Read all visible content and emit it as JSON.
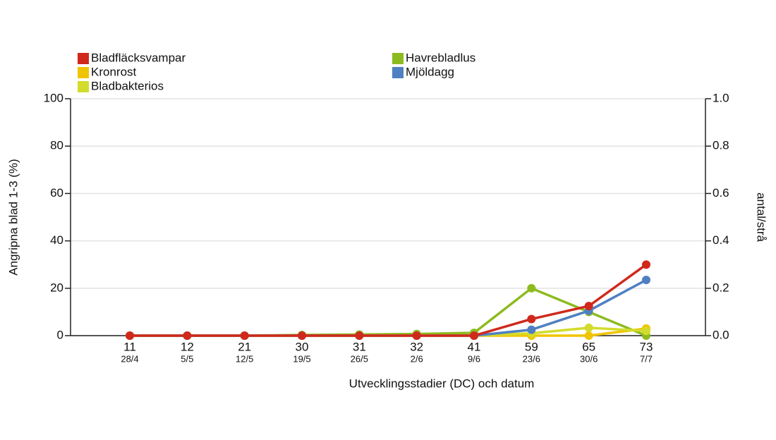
{
  "chart_data": {
    "type": "line",
    "x_label": "Utvecklingsstadier (DC) och datum",
    "y_label": "Angripna blad 1-3 (%)",
    "y2_label": "antal/strå",
    "categories": [
      "11",
      "12",
      "21",
      "30",
      "31",
      "32",
      "41",
      "59",
      "65",
      "73"
    ],
    "dates": [
      "28/4",
      "5/5",
      "12/5",
      "19/5",
      "26/5",
      "2/6",
      "9/6",
      "23/6",
      "30/6",
      "7/7"
    ],
    "ylim": [
      0,
      100
    ],
    "yticks": [
      0,
      20,
      40,
      60,
      80,
      100
    ],
    "y2lim": [
      0,
      1
    ],
    "y2ticks": [
      {
        "value": 0,
        "label": "0.0"
      },
      {
        "value": 0.2,
        "label": "0.2"
      },
      {
        "value": 0.4,
        "label": "0.4"
      },
      {
        "value": 0.6,
        "label": "0.6"
      },
      {
        "value": 0.8,
        "label": "0.8"
      },
      {
        "value": 1,
        "label": "1.0"
      }
    ],
    "grid": true,
    "series": [
      {
        "name": "Bladfläcksvampar",
        "color": "#d0291c",
        "values": [
          0,
          0,
          0,
          0,
          0,
          0,
          0,
          7,
          12.5,
          30
        ]
      },
      {
        "name": "Havrebladlus",
        "color": "#8dbb1f",
        "axis": "y2",
        "values": [
          0,
          0,
          0,
          0.003,
          0.005,
          0.007,
          0.012,
          0.2,
          0.1,
          0
        ]
      },
      {
        "name": "Kronrost",
        "color": "#f0c400",
        "values": [
          0,
          0,
          0,
          0,
          0,
          0,
          0,
          0,
          0,
          3
        ]
      },
      {
        "name": "Mjöldagg",
        "color": "#4f80c2",
        "values": [
          0,
          0,
          0,
          0,
          0,
          0,
          0,
          2.5,
          10.5,
          23.5
        ]
      },
      {
        "name": "Bladbakterios",
        "color": "#d3dc2c",
        "values": [
          0,
          0,
          0,
          0,
          0,
          0,
          0,
          1,
          3.3,
          2
        ]
      }
    ]
  }
}
